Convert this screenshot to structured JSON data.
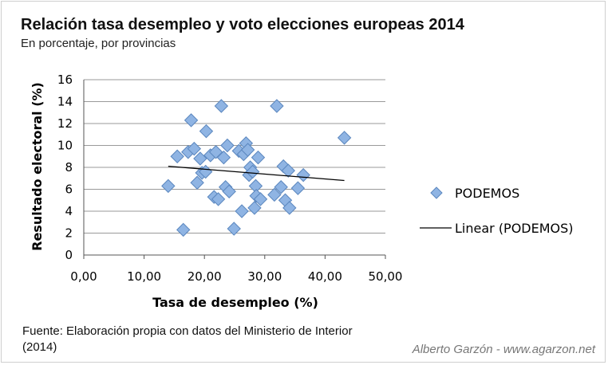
{
  "title": "Relación tasa desempleo y voto elecciones europeas 2014",
  "subtitle": "En porcentaje, por provincias",
  "source": "Fuente: Elaboración propia con datos del Ministerio de Interior (2014)",
  "credit": "Alberto Garzón - www.agarzon.net",
  "colors": {
    "marker_fill": "#8fb4e3",
    "marker_stroke": "#5b87bf",
    "trend": "#000000",
    "grid": "#9a9a9a"
  },
  "chart_data": {
    "type": "scatter",
    "xlabel": "Tasa de desempleo (%)",
    "ylabel": "Resultado electoral (%)",
    "xlim": [
      0,
      50
    ],
    "ylim": [
      0,
      16
    ],
    "xticks": [
      "0,00",
      "10,00",
      "20,00",
      "30,00",
      "40,00",
      "50,00"
    ],
    "yticks": [
      "0",
      "2",
      "4",
      "6",
      "8",
      "10",
      "12",
      "14",
      "16"
    ],
    "grid": "horizontal",
    "legend": "right",
    "series": [
      {
        "name": "PODEMOS",
        "marker": "diamond",
        "points": [
          [
            14,
            6.3
          ],
          [
            15.5,
            9.0
          ],
          [
            16.5,
            2.3
          ],
          [
            17.3,
            9.4
          ],
          [
            17.8,
            12.3
          ],
          [
            18.3,
            9.7
          ],
          [
            18.8,
            6.6
          ],
          [
            19.3,
            8.8
          ],
          [
            19.6,
            7.5
          ],
          [
            20.2,
            7.6
          ],
          [
            20.3,
            11.3
          ],
          [
            21,
            9.1
          ],
          [
            21.6,
            5.3
          ],
          [
            21.9,
            9.4
          ],
          [
            22.3,
            5.1
          ],
          [
            22.8,
            13.6
          ],
          [
            23.2,
            8.9
          ],
          [
            23.5,
            6.2
          ],
          [
            23.8,
            10.0
          ],
          [
            24.1,
            5.8
          ],
          [
            24.9,
            2.4
          ],
          [
            25.7,
            9.5
          ],
          [
            26.2,
            4.0
          ],
          [
            26.5,
            9.2
          ],
          [
            26.9,
            10.2
          ],
          [
            27.2,
            9.6
          ],
          [
            27.4,
            7.3
          ],
          [
            27.6,
            8.0
          ],
          [
            28.0,
            7.6
          ],
          [
            28.3,
            4.3
          ],
          [
            28.5,
            6.3
          ],
          [
            28.6,
            5.4
          ],
          [
            28.9,
            8.9
          ],
          [
            29.3,
            5.1
          ],
          [
            31.6,
            5.5
          ],
          [
            32.0,
            13.6
          ],
          [
            32.7,
            6.2
          ],
          [
            33.1,
            8.1
          ],
          [
            33.4,
            5.0
          ],
          [
            33.9,
            7.7
          ],
          [
            34.1,
            4.3
          ],
          [
            35.5,
            6.1
          ],
          [
            36.4,
            7.3
          ],
          [
            43.2,
            10.7
          ]
        ]
      }
    ],
    "trendline": {
      "name": "Linear (PODEMOS)",
      "x": [
        14,
        43.2
      ],
      "y": [
        8.1,
        6.8
      ]
    }
  }
}
